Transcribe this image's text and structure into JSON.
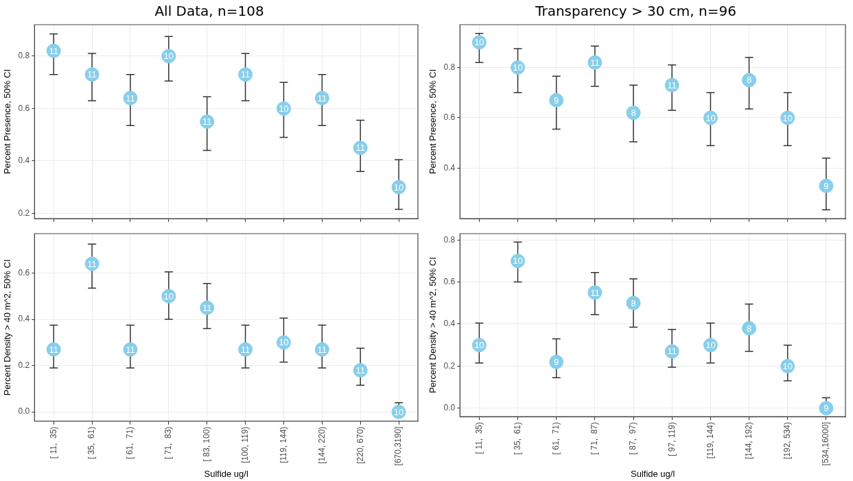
{
  "chart_data": [
    {
      "type": "scatter",
      "title": "All Data, n=108",
      "ylabel": "Percent Presence, 50% CI",
      "categories": [
        "[ 11,  35)",
        "[ 35,  61)",
        "[ 61,  71)",
        "[ 71,  83)",
        "[ 83, 100)",
        "[100, 119)",
        "[119, 144)",
        "[144, 220)",
        "[220, 670)",
        "[670,3190]"
      ],
      "values": [
        0.82,
        0.73,
        0.64,
        0.8,
        0.55,
        0.73,
        0.6,
        0.64,
        0.45,
        0.3
      ],
      "errors": [
        [
          0.73,
          0.885
        ],
        [
          0.63,
          0.81
        ],
        [
          0.535,
          0.73
        ],
        [
          0.705,
          0.875
        ],
        [
          0.44,
          0.645
        ],
        [
          0.63,
          0.81
        ],
        [
          0.49,
          0.7
        ],
        [
          0.535,
          0.73
        ],
        [
          0.36,
          0.555
        ],
        [
          0.215,
          0.405
        ]
      ],
      "annotations": [
        {
          "text": "11",
          "x": "[ 11,  35)",
          "y": 0.82
        },
        {
          "text": "11",
          "x": "[ 35,  61)",
          "y": 0.73
        },
        {
          "text": "11",
          "x": "[ 61,  71)",
          "y": 0.64
        },
        {
          "text": "10",
          "x": "[ 71,  83)",
          "y": 0.8
        },
        {
          "text": "11",
          "x": "[ 83, 100)",
          "y": 0.55
        },
        {
          "text": "11",
          "x": "[100, 119)",
          "y": 0.73
        },
        {
          "text": "10",
          "x": "[119, 144)",
          "y": 0.6
        },
        {
          "text": "11",
          "x": "[144, 220)",
          "y": 0.64
        },
        {
          "text": "11",
          "x": "[220, 670)",
          "y": 0.45
        },
        {
          "text": "10",
          "x": "[670,3190]",
          "y": 0.3
        }
      ],
      "color": "#87ceeb",
      "marker": "circle",
      "ylim": [
        0.18,
        0.92
      ],
      "yticks": [
        0.2,
        0.4,
        0.6,
        0.8
      ],
      "grid": true,
      "tick_labels": "y"
    },
    {
      "type": "scatter",
      "title": "Transparency > 30 cm, n=96",
      "ylabel": "Percent Presence, 50% CI",
      "categories": [
        "[ 11,  35)",
        "[ 35,  61)",
        "[ 61,  71)",
        "[ 71,  87)",
        "[ 87,  97)",
        "[ 97, 119)",
        "[119, 144)",
        "[144, 192)",
        "[192, 534)",
        "[534,16000]"
      ],
      "values": [
        0.9,
        0.8,
        0.67,
        0.82,
        0.62,
        0.73,
        0.6,
        0.75,
        0.6,
        0.33
      ],
      "errors": [
        [
          0.82,
          0.935
        ],
        [
          0.7,
          0.875
        ],
        [
          0.555,
          0.765
        ],
        [
          0.725,
          0.885
        ],
        [
          0.505,
          0.73
        ],
        [
          0.63,
          0.81
        ],
        [
          0.49,
          0.7
        ],
        [
          0.635,
          0.84
        ],
        [
          0.49,
          0.7
        ],
        [
          0.235,
          0.44
        ]
      ],
      "annotations": [
        {
          "text": "10",
          "x": "[ 11,  35)",
          "y": 0.9
        },
        {
          "text": "10",
          "x": "[ 35,  61)",
          "y": 0.8
        },
        {
          "text": "9",
          "x": "[ 61,  71)",
          "y": 0.67
        },
        {
          "text": "11",
          "x": "[ 71,  87)",
          "y": 0.82
        },
        {
          "text": "8",
          "x": "[ 87,  97)",
          "y": 0.62
        },
        {
          "text": "11",
          "x": "[ 97, 119)",
          "y": 0.73
        },
        {
          "text": "10",
          "x": "[119, 144)",
          "y": 0.6
        },
        {
          "text": "8",
          "x": "[144, 192)",
          "y": 0.75
        },
        {
          "text": "10",
          "x": "[192, 534)",
          "y": 0.6
        },
        {
          "text": "9",
          "x": "[534,16000]",
          "y": 0.33
        }
      ],
      "color": "#87ceeb",
      "marker": "circle",
      "ylim": [
        0.2,
        0.97
      ],
      "yticks": [
        0.4,
        0.6,
        0.8
      ],
      "grid": true,
      "tick_labels": "y"
    },
    {
      "type": "scatter",
      "xlabel": "Sulfide ug/l",
      "ylabel": "Percent Density > 40 m^2, 50% CI",
      "categories": [
        "[ 11,  35)",
        "[ 35,  61)",
        "[ 61,  71)",
        "[ 71,  83)",
        "[ 83, 100)",
        "[100, 119)",
        "[119, 144)",
        "[144, 220)",
        "[220, 670)",
        "[670,3190]"
      ],
      "values": [
        0.27,
        0.64,
        0.27,
        0.5,
        0.45,
        0.27,
        0.3,
        0.27,
        0.18,
        0.0
      ],
      "errors": [
        [
          0.19,
          0.375
        ],
        [
          0.535,
          0.725
        ],
        [
          0.19,
          0.375
        ],
        [
          0.4,
          0.605
        ],
        [
          0.36,
          0.555
        ],
        [
          0.19,
          0.375
        ],
        [
          0.215,
          0.405
        ],
        [
          0.19,
          0.375
        ],
        [
          0.115,
          0.275
        ],
        [
          0.0,
          0.04
        ]
      ],
      "annotations": [
        {
          "text": "11",
          "x": "[ 11,  35)",
          "y": 0.27
        },
        {
          "text": "11",
          "x": "[ 35,  61)",
          "y": 0.64
        },
        {
          "text": "11",
          "x": "[ 61,  71)",
          "y": 0.27
        },
        {
          "text": "10",
          "x": "[ 71,  83)",
          "y": 0.5
        },
        {
          "text": "11",
          "x": "[ 83, 100)",
          "y": 0.45
        },
        {
          "text": "11",
          "x": "[100, 119)",
          "y": 0.27
        },
        {
          "text": "10",
          "x": "[119, 144)",
          "y": 0.3
        },
        {
          "text": "11",
          "x": "[144, 220)",
          "y": 0.27
        },
        {
          "text": "11",
          "x": "[220, 670)",
          "y": 0.18
        },
        {
          "text": "10",
          "x": "[670,3190]",
          "y": 0.0
        }
      ],
      "color": "#87ceeb",
      "marker": "circle",
      "ylim": [
        -0.04,
        0.77
      ],
      "yticks": [
        {
          "value": 0,
          "label": "0.0"
        },
        0.2,
        0.4,
        0.6
      ],
      "grid": true
    },
    {
      "type": "scatter",
      "xlabel": "Sulfide ug/l",
      "ylabel": "Percent Density > 40 m^2, 50% CI",
      "categories": [
        "[ 11,  35)",
        "[ 35,  61)",
        "[ 61,  71)",
        "[ 71,  87)",
        "[ 87,  97)",
        "[ 97, 119)",
        "[119, 144)",
        "[144, 192)",
        "[192, 534)",
        "[534,16000]"
      ],
      "values": [
        0.3,
        0.7,
        0.22,
        0.55,
        0.5,
        0.27,
        0.3,
        0.38,
        0.2,
        0.0
      ],
      "errors": [
        [
          0.215,
          0.405
        ],
        [
          0.6,
          0.79
        ],
        [
          0.145,
          0.33
        ],
        [
          0.445,
          0.645
        ],
        [
          0.385,
          0.615
        ],
        [
          0.195,
          0.375
        ],
        [
          0.215,
          0.405
        ],
        [
          0.27,
          0.495
        ],
        [
          0.13,
          0.3
        ],
        [
          0.0,
          0.05
        ]
      ],
      "annotations": [
        {
          "text": "10",
          "x": "[ 11,  35)",
          "y": 0.3
        },
        {
          "text": "10",
          "x": "[ 35,  61)",
          "y": 0.7
        },
        {
          "text": "9",
          "x": "[ 61,  71)",
          "y": 0.22
        },
        {
          "text": "11",
          "x": "[ 71,  87)",
          "y": 0.55
        },
        {
          "text": "8",
          "x": "[ 87,  97)",
          "y": 0.5
        },
        {
          "text": "11",
          "x": "[ 97, 119)",
          "y": 0.27
        },
        {
          "text": "10",
          "x": "[119, 144)",
          "y": 0.3
        },
        {
          "text": "8",
          "x": "[144, 192)",
          "y": 0.38
        },
        {
          "text": "10",
          "x": "[192, 534)",
          "y": 0.2
        },
        {
          "text": "9",
          "x": "[534,16000]",
          "y": 0.0
        }
      ],
      "color": "#87ceeb",
      "marker": "circle",
      "ylim": [
        -0.04,
        0.83
      ],
      "yticks": [
        {
          "value": 0,
          "label": "0.0"
        },
        0.2,
        0.4,
        0.6,
        0.8
      ],
      "grid": true
    }
  ]
}
